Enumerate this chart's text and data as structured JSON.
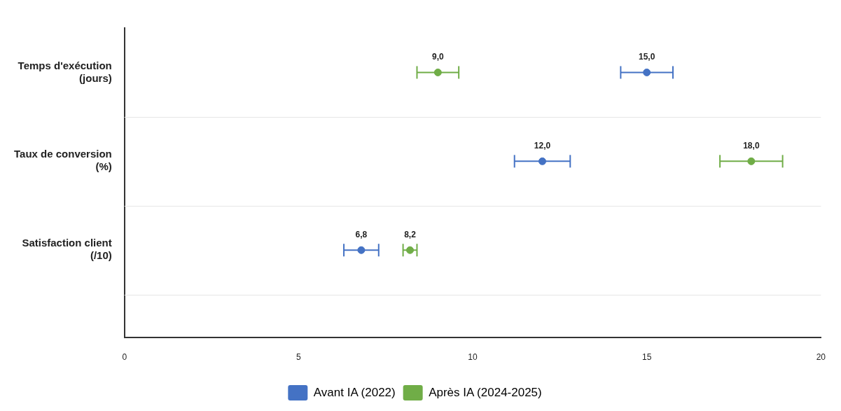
{
  "chart_data": {
    "type": "scatter",
    "orientation": "horizontal",
    "categories": [
      "Temps d'exécution (jours)",
      "Taux de conversion (%)",
      "Satisfaction client (/10)"
    ],
    "series": [
      {
        "name": "Avant IA (2022)",
        "color": "#4472c4",
        "values": [
          15.0,
          12.0,
          6.8
        ],
        "errors": [
          0.75,
          0.8,
          0.5
        ],
        "value_labels": [
          "15,0",
          "12,0",
          "6,8"
        ]
      },
      {
        "name": "Après IA (2024-2025)",
        "color": "#70ad47",
        "values": [
          9.0,
          18.0,
          8.2
        ],
        "errors": [
          0.6,
          0.9,
          0.2
        ],
        "value_labels": [
          "9,0",
          "18,0",
          "8,2"
        ]
      }
    ],
    "xlim": [
      0,
      20
    ],
    "xticks": [
      0,
      5,
      10,
      15,
      20
    ],
    "grid": "y",
    "legend": "bottom",
    "marker": "circle"
  }
}
